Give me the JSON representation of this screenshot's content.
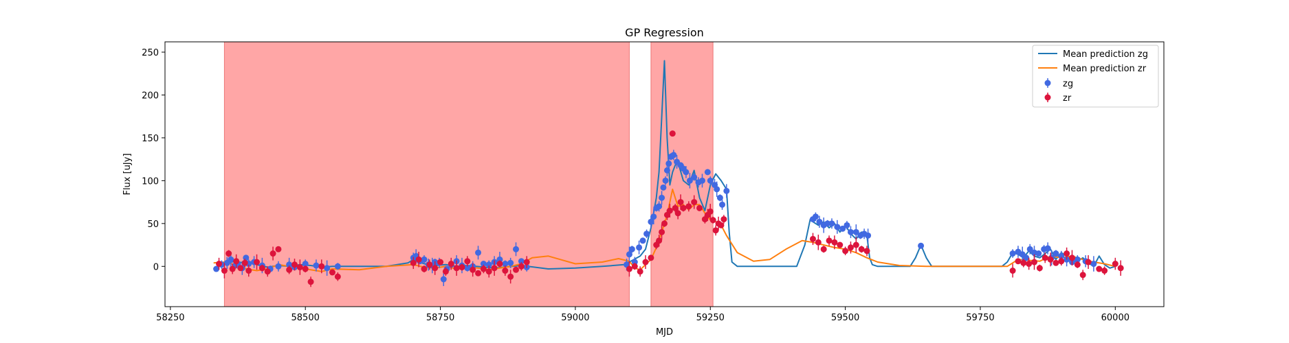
{
  "chart_data": {
    "type": "scatter",
    "title": "GP Regression",
    "xlabel": "MJD",
    "ylabel": "Flux [uJy]",
    "xlim": [
      58240,
      60090
    ],
    "ylim": [
      -47,
      262
    ],
    "xticks": [
      58250,
      58500,
      58750,
      59000,
      59250,
      59500,
      59750,
      60000
    ],
    "yticks": [
      0,
      50,
      100,
      150,
      200,
      250
    ],
    "grid": false,
    "legend_position": "top-right",
    "colors": {
      "zg_points": "#4169E1",
      "zr_points": "#DC143C",
      "mean_zg": "#1f77b4",
      "mean_zr": "#ff7f0e",
      "shaded": "#FF5555"
    },
    "shaded_regions": [
      {
        "x0": 58350,
        "x1": 59100
      },
      {
        "x0": 59140,
        "x1": 59255
      }
    ],
    "lines": [
      {
        "name": "Mean prediction zg",
        "color": "#1f77b4",
        "x": [
          58330,
          58350,
          58370,
          58385,
          58395,
          58410,
          58430,
          58450,
          58470,
          58490,
          58510,
          58530,
          58550,
          58600,
          58650,
          58690,
          58700,
          58720,
          58740,
          58760,
          58780,
          58800,
          58850,
          58900,
          58950,
          59000,
          59050,
          59090,
          59100,
          59120,
          59130,
          59140,
          59150,
          59155,
          59160,
          59165,
          59170,
          59175,
          59180,
          59185,
          59190,
          59200,
          59210,
          59220,
          59230,
          59240,
          59250,
          59260,
          59270,
          59280,
          59285,
          59290,
          59300,
          59320,
          59350,
          59380,
          59410,
          59425,
          59435,
          59440,
          59450,
          59460,
          59470,
          59480,
          59490,
          59500,
          59510,
          59520,
          59530,
          59540,
          59545,
          59550,
          59560,
          59580,
          59600,
          59620,
          59630,
          59640,
          59650,
          59660,
          59680,
          59700,
          59750,
          59790,
          59800,
          59810,
          59820,
          59830,
          59840,
          59850,
          59860,
          59870,
          59880,
          59890,
          59900,
          59910,
          59920,
          59930,
          59940,
          59950,
          59960,
          59970,
          59980,
          59990,
          60000
        ],
        "y": [
          -3,
          3,
          6,
          4,
          6,
          2,
          -1,
          1,
          0,
          2,
          1,
          -1,
          0,
          0,
          0,
          4,
          8,
          3,
          1,
          2,
          0,
          1,
          -2,
          1,
          -3,
          -2,
          0,
          2,
          5,
          12,
          20,
          45,
          80,
          110,
          175,
          240,
          150,
          95,
          110,
          118,
          122,
          100,
          95,
          112,
          80,
          65,
          95,
          108,
          100,
          90,
          40,
          5,
          0,
          0,
          0,
          0,
          0,
          25,
          55,
          52,
          48,
          52,
          45,
          50,
          40,
          48,
          38,
          32,
          40,
          36,
          10,
          2,
          0,
          0,
          0,
          0,
          10,
          25,
          10,
          0,
          0,
          0,
          0,
          0,
          5,
          16,
          14,
          10,
          18,
          12,
          10,
          15,
          20,
          8,
          16,
          12,
          5,
          6,
          10,
          4,
          0,
          12,
          2,
          -2,
          0
        ]
      },
      {
        "name": "Mean prediction zr",
        "color": "#ff7f0e",
        "x": [
          58330,
          58350,
          58370,
          58390,
          58410,
          58430,
          58450,
          58470,
          58490,
          58510,
          58530,
          58550,
          58600,
          58650,
          58700,
          58720,
          58740,
          58760,
          58780,
          58800,
          58820,
          58840,
          58860,
          58880,
          58900,
          58920,
          58950,
          59000,
          59050,
          59080,
          59100,
          59110,
          59120,
          59130,
          59140,
          59150,
          59160,
          59170,
          59180,
          59190,
          59200,
          59210,
          59220,
          59230,
          59240,
          59250,
          59260,
          59270,
          59280,
          59300,
          59330,
          59360,
          59390,
          59420,
          59440,
          59460,
          59480,
          59500,
          59520,
          59540,
          59560,
          59600,
          59650,
          59700,
          59750,
          59800,
          59820,
          59840,
          59860,
          59880,
          59900,
          59920,
          59940,
          59960,
          59980,
          60000
        ],
        "y": [
          4,
          5,
          2,
          -3,
          -5,
          -3,
          2,
          0,
          -2,
          -4,
          -6,
          -3,
          -4,
          0,
          2,
          -1,
          -2,
          0,
          -3,
          -1,
          -2,
          -4,
          -2,
          0,
          3,
          10,
          12,
          3,
          5,
          9,
          6,
          -2,
          -4,
          2,
          8,
          22,
          40,
          60,
          90,
          70,
          72,
          66,
          72,
          72,
          62,
          54,
          52,
          48,
          36,
          16,
          6,
          8,
          20,
          30,
          28,
          25,
          22,
          20,
          16,
          10,
          5,
          1,
          0,
          0,
          0,
          0,
          8,
          7,
          6,
          12,
          10,
          12,
          8,
          5,
          3,
          0
        ]
      }
    ],
    "series": [
      {
        "name": "zg",
        "color": "#4169E1",
        "x": [
          58335,
          58345,
          58355,
          58362,
          58370,
          58375,
          58383,
          58390,
          58395,
          58405,
          58420,
          58435,
          58450,
          58470,
          58480,
          58500,
          58520,
          58540,
          58560,
          58700,
          58705,
          58712,
          58720,
          58728,
          58735,
          58740,
          58748,
          58756,
          58762,
          58770,
          58780,
          58790,
          58800,
          58810,
          58820,
          58830,
          58840,
          58850,
          58860,
          58870,
          58880,
          58890,
          58900,
          58910,
          59095,
          59100,
          59105,
          59110,
          59118,
          59125,
          59132,
          59140,
          59145,
          59150,
          59155,
          59160,
          59163,
          59167,
          59170,
          59173,
          59177,
          59182,
          59188,
          59195,
          59200,
          59205,
          59212,
          59220,
          59228,
          59235,
          59245,
          59250,
          59258,
          59262,
          59268,
          59272,
          59280,
          59440,
          59445,
          59452,
          59460,
          59467,
          59475,
          59485,
          59495,
          59503,
          59510,
          59520,
          59528,
          59535,
          59542,
          59640,
          59810,
          59820,
          59828,
          59835,
          59842,
          59850,
          59858,
          59868,
          59875,
          59882,
          59890,
          59900,
          59910,
          59920,
          59930,
          59945,
          59960
        ],
        "y": [
          -3,
          2,
          4,
          8,
          1,
          3,
          -2,
          10,
          3,
          5,
          1,
          -3,
          0,
          2,
          -1,
          3,
          1,
          -2,
          0,
          10,
          12,
          6,
          8,
          2,
          1,
          5,
          4,
          -15,
          -3,
          2,
          6,
          1,
          -2,
          0,
          16,
          3,
          2,
          5,
          8,
          3,
          4,
          20,
          6,
          -1,
          2,
          14,
          20,
          5,
          22,
          30,
          38,
          52,
          58,
          68,
          70,
          80,
          92,
          100,
          112,
          120,
          128,
          130,
          122,
          118,
          114,
          110,
          100,
          104,
          98,
          100,
          110,
          100,
          95,
          90,
          80,
          72,
          88,
          55,
          58,
          52,
          48,
          50,
          50,
          46,
          44,
          48,
          40,
          40,
          36,
          38,
          36,
          24,
          15,
          17,
          14,
          10,
          20,
          16,
          15,
          20,
          21,
          10,
          15,
          12,
          8,
          5,
          8,
          6,
          3
        ]
      },
      {
        "name": "zr",
        "color": "#DC143C",
        "x": [
          58340,
          58350,
          58358,
          58365,
          58372,
          58380,
          58388,
          58395,
          58410,
          58420,
          58430,
          58440,
          58450,
          58470,
          58480,
          58490,
          58500,
          58510,
          58530,
          58550,
          58560,
          58700,
          58710,
          58720,
          58730,
          58740,
          58750,
          58760,
          58770,
          58780,
          58790,
          58800,
          58810,
          58820,
          58830,
          58840,
          58850,
          58860,
          58870,
          58880,
          58890,
          58900,
          58910,
          59100,
          59110,
          59120,
          59130,
          59140,
          59150,
          59155,
          59160,
          59165,
          59170,
          59175,
          59180,
          59185,
          59190,
          59195,
          59200,
          59210,
          59220,
          59230,
          59240,
          59245,
          59250,
          59255,
          59260,
          59265,
          59270,
          59275,
          59440,
          59450,
          59460,
          59470,
          59480,
          59490,
          59500,
          59510,
          59520,
          59530,
          59540,
          59810,
          59820,
          59830,
          59840,
          59850,
          59860,
          59870,
          59880,
          59890,
          59900,
          59910,
          59920,
          59930,
          59940,
          59950,
          59970,
          59980,
          60000,
          60010
        ],
        "y": [
          3,
          -5,
          15,
          -3,
          6,
          -2,
          4,
          -5,
          5,
          -2,
          -6,
          15,
          20,
          -4,
          2,
          -1,
          -3,
          -18,
          0,
          -7,
          -12,
          4,
          8,
          -3,
          2,
          -2,
          5,
          -6,
          3,
          -2,
          -1,
          6,
          -4,
          -8,
          -3,
          -6,
          -2,
          3,
          -5,
          -12,
          -4,
          0,
          5,
          -3,
          0,
          -6,
          5,
          10,
          25,
          30,
          40,
          50,
          60,
          65,
          155,
          68,
          62,
          75,
          68,
          70,
          75,
          68,
          55,
          60,
          64,
          54,
          42,
          50,
          48,
          55,
          32,
          28,
          20,
          30,
          28,
          25,
          18,
          22,
          25,
          20,
          18,
          -5,
          6,
          4,
          3,
          5,
          -2,
          10,
          8,
          4,
          6,
          15,
          10,
          2,
          -10,
          5,
          -3,
          -5,
          3,
          -2
        ]
      }
    ]
  }
}
